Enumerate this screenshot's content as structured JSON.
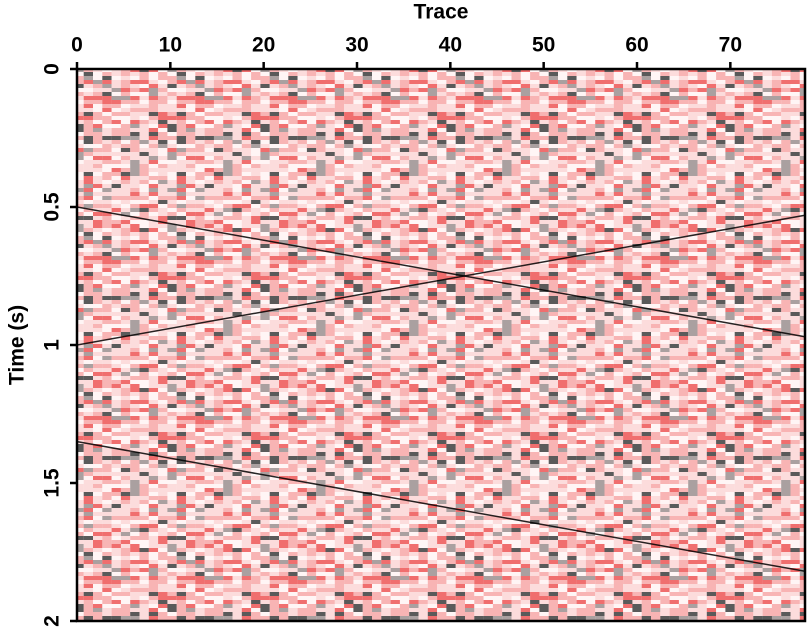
{
  "chart_data": {
    "type": "line",
    "x_label": "Trace",
    "y_label": "Time (s)",
    "xlim": [
      0,
      78
    ],
    "ylim": [
      0,
      2
    ],
    "xticks": [
      0,
      10,
      20,
      30,
      40,
      50,
      60,
      70
    ],
    "yticks": [
      0,
      0.5,
      1,
      1.5,
      2
    ],
    "y_inverted": true,
    "x_axis_top": true,
    "x": [
      0,
      78
    ],
    "series": [
      {
        "color": "#000000",
        "values": [
          0.5,
          0.97
        ]
      },
      {
        "color": "#000000",
        "values": [
          1.0,
          0.53
        ]
      },
      {
        "color": "#000000",
        "values": [
          1.35,
          1.82
        ]
      }
    ]
  }
}
